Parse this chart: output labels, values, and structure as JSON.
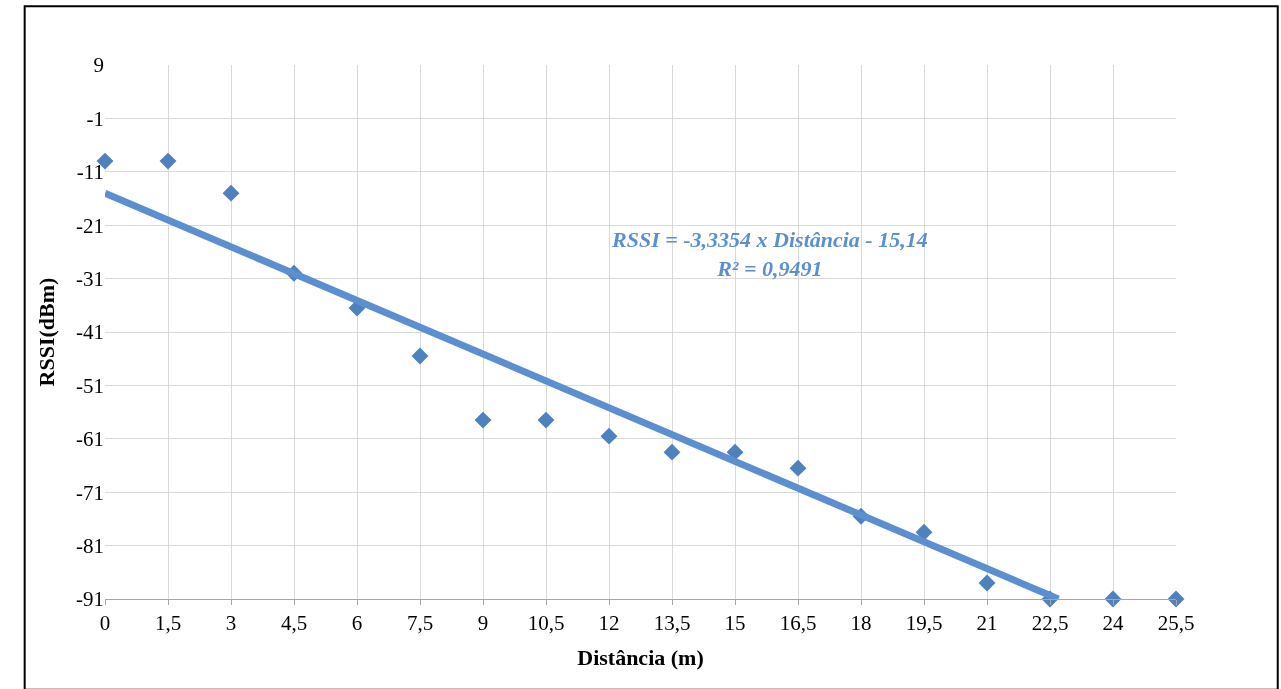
{
  "chart_data": {
    "type": "scatter",
    "xlabel": "Distância (m)",
    "ylabel": "RSSI(dBm)",
    "x": [
      0,
      1.5,
      3,
      4.5,
      6,
      7.5,
      9,
      10.5,
      12,
      13.5,
      15,
      16.5,
      18,
      19.5,
      21,
      22.5,
      24,
      25.5
    ],
    "series": [
      {
        "color": "#4f81bd",
        "marker": "diamond",
        "values": [
          -9,
          -9,
          -15,
          -30,
          -36.5,
          -45.5,
          -57.5,
          -57.5,
          -60.5,
          -63.5,
          -63.5,
          -66.5,
          -75.5,
          -78.5,
          -88,
          -91,
          -91,
          -91
        ]
      },
      {
        "type": "line",
        "color": "#5b8fd0",
        "marker": "none",
        "line_style": "solid",
        "x": [
          0,
          22.7
        ],
        "values": [
          -15,
          -91
        ]
      }
    ],
    "xlim": [
      0,
      25.5
    ],
    "xticks": [
      0,
      {
        "value": 1.5,
        "label": "1,5"
      },
      3,
      {
        "value": 4.5,
        "label": "4,5"
      },
      6,
      {
        "value": 7.5,
        "label": "7,5"
      },
      9,
      {
        "value": 10.5,
        "label": "10,5"
      },
      12,
      {
        "value": 13.5,
        "label": "13,5"
      },
      15,
      {
        "value": 16.5,
        "label": "16,5"
      },
      18,
      {
        "value": 19.5,
        "label": "19,5"
      },
      21,
      {
        "value": 22.5,
        "label": "22,5"
      },
      24,
      {
        "value": 25.5,
        "label": "25,5"
      }
    ],
    "ylim": [
      -91,
      9
    ],
    "yticks": [
      -91,
      -81,
      -71,
      -61,
      -51,
      -41,
      -31,
      -21,
      -11,
      -1,
      9
    ],
    "grid": true,
    "annotations": [
      "RSSI = -3,3354 x Distância - 15,14",
      "R² = 0,9491"
    ]
  }
}
